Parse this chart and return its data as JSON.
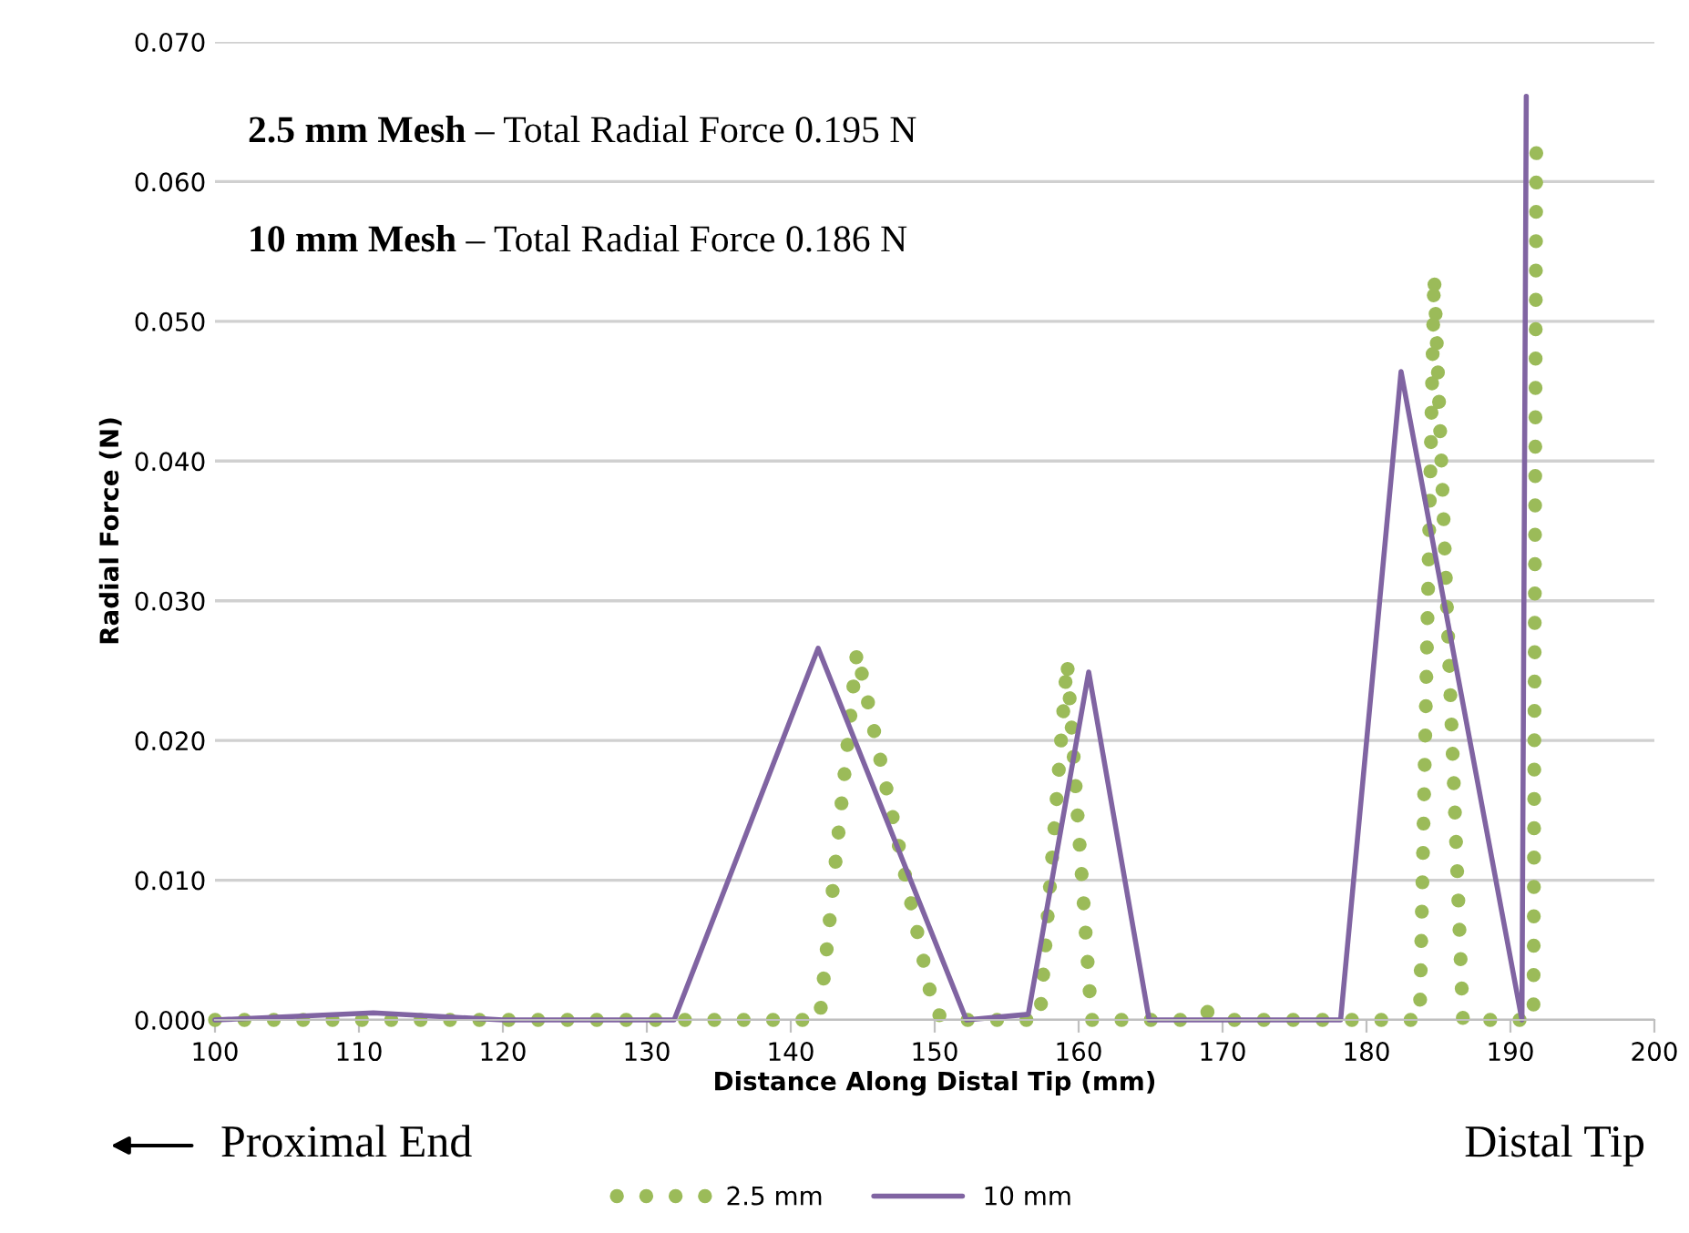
{
  "chart_data": {
    "type": "line",
    "xlabel": "Distance Along Distal Tip (mm)",
    "ylabel": "Radial Force (N)",
    "xlim": [
      100,
      200
    ],
    "xticks": [
      100,
      110,
      120,
      130,
      140,
      150,
      160,
      170,
      180,
      190,
      200
    ],
    "ylim": [
      0,
      0.07
    ],
    "yticks": [
      {
        "value": 0,
        "label": "0.000"
      },
      {
        "value": 0.01,
        "label": "0.010"
      },
      {
        "value": 0.02,
        "label": "0.020"
      },
      {
        "value": 0.03,
        "label": "0.030"
      },
      {
        "value": 0.04,
        "label": "0.040"
      },
      {
        "value": 0.05,
        "label": "0.050"
      },
      {
        "value": 0.06,
        "label": "0.060"
      },
      {
        "value": 0.07,
        "label": "0.070"
      }
    ],
    "grid": "y",
    "legend": "bottom",
    "marker": "none",
    "series": [
      {
        "name": "2.5 mm",
        "color": "#9bbb59",
        "line_style": "dotted",
        "x": [
          100,
          142,
          144.6,
          150,
          151,
          157.3,
          159.2,
          160.9,
          168,
          169,
          170,
          183.7,
          184.7,
          186.7,
          191.6,
          191.8
        ],
        "values": [
          0,
          0,
          0.0264,
          0.0005,
          0,
          0,
          0.0257,
          0,
          0,
          0.0006,
          0,
          0,
          0.0533,
          0,
          0,
          0.0633
        ]
      },
      {
        "name": "10 mm",
        "color": "#8064a2",
        "line_style": "solid",
        "x": [
          100,
          111,
          120,
          131.9,
          141.9,
          152.2,
          156.5,
          160.7,
          164.9,
          178.2,
          182.4,
          190.8,
          191.1
        ],
        "values": [
          0,
          0.0005,
          0,
          0,
          0.0266,
          0,
          0.0004,
          0.0249,
          0,
          0,
          0.0464,
          0,
          0.0661
        ]
      }
    ],
    "annotations": [
      "2.5 mm Mesh",
      "– Total Radial Force 0.195 N",
      "10 mm Mesh",
      "– Total Radial Force 0.186 N",
      "Proximal End",
      "Distal Tip"
    ]
  }
}
